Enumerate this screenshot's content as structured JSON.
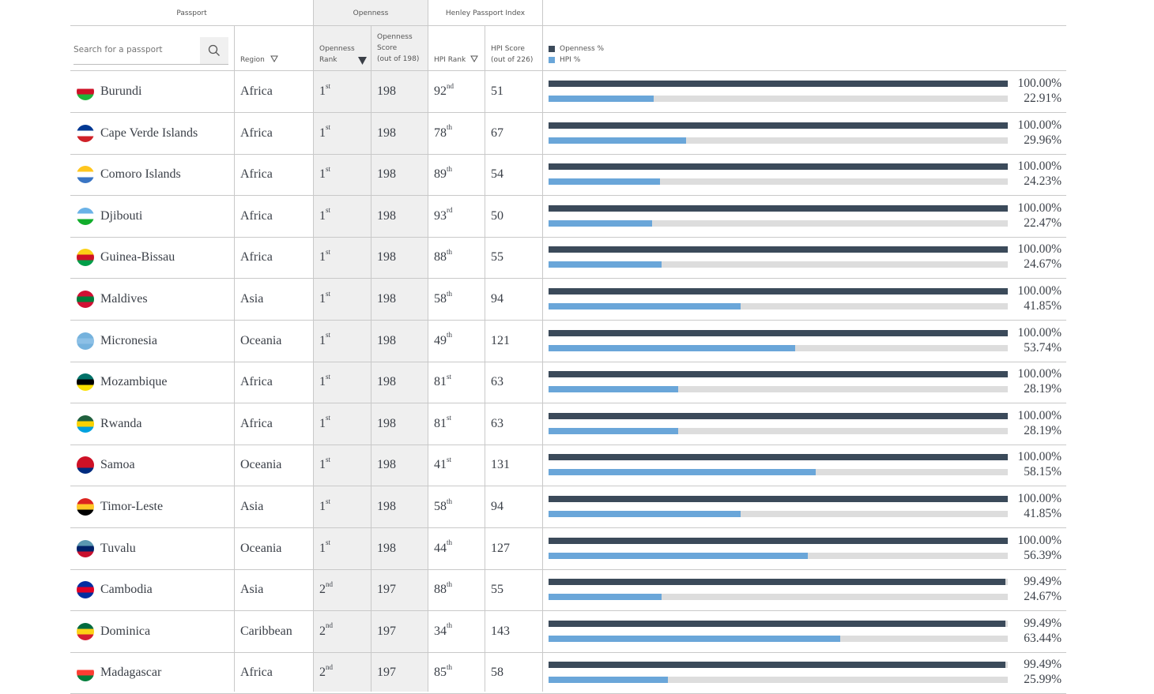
{
  "groups": {
    "passport": "Passport",
    "openness": "Openness",
    "henley": "Henley Passport Index"
  },
  "search": {
    "placeholder": "Search for a passport",
    "icon": "search-icon"
  },
  "headers": {
    "region": "Region",
    "openness_rank_line1": "Openness",
    "openness_rank_line2": "Rank",
    "openness_score_line1": "Openness",
    "openness_score_line2": "Score",
    "openness_score_line3": "(out of 198)",
    "hpi_rank": "HPI Rank",
    "hpi_score_line1": "HPI Score",
    "hpi_score_line2": "(out of 226)"
  },
  "legend": [
    {
      "label": "Openness %",
      "color": "#3b4a5a"
    },
    {
      "label": "HPI %",
      "color": "#6aa6d9"
    }
  ],
  "colors": {
    "openness_bar": "#3b4a5a",
    "hpi_bar": "#6aa6d9",
    "track": "#dddddd"
  },
  "rows": [
    {
      "country": "Burundi",
      "region": "Africa",
      "o_rank": "1",
      "o_suf": "st",
      "o_score": "198",
      "h_rank": "92",
      "h_suf": "nd",
      "h_score": "51",
      "openness_pct": 100.0,
      "openness_label": "100.00%",
      "hpi_pct": 22.91,
      "hpi_label": "22.91%",
      "flag": [
        "#ffffff",
        "#ce1126",
        "#1eb53a"
      ]
    },
    {
      "country": "Cape Verde Islands",
      "region": "Africa",
      "o_rank": "1",
      "o_suf": "st",
      "o_score": "198",
      "h_rank": "78",
      "h_suf": "th",
      "h_score": "67",
      "openness_pct": 100.0,
      "openness_label": "100.00%",
      "hpi_pct": 29.96,
      "hpi_label": "29.96%",
      "flag": [
        "#003893",
        "#ffffff",
        "#cf2027"
      ]
    },
    {
      "country": "Comoro Islands",
      "region": "Africa",
      "o_rank": "1",
      "o_suf": "st",
      "o_score": "198",
      "h_rank": "89",
      "h_suf": "th",
      "h_score": "54",
      "openness_pct": 100.0,
      "openness_label": "100.00%",
      "hpi_pct": 24.23,
      "hpi_label": "24.23%",
      "flag": [
        "#ffc61e",
        "#ffffff",
        "#3a75c4"
      ]
    },
    {
      "country": "Djibouti",
      "region": "Africa",
      "o_rank": "1",
      "o_suf": "st",
      "o_score": "198",
      "h_rank": "93",
      "h_suf": "rd",
      "h_score": "50",
      "openness_pct": 100.0,
      "openness_label": "100.00%",
      "hpi_pct": 22.47,
      "hpi_label": "22.47%",
      "flag": [
        "#6ab2e7",
        "#ffffff",
        "#12ad2b"
      ]
    },
    {
      "country": "Guinea-Bissau",
      "region": "Africa",
      "o_rank": "1",
      "o_suf": "st",
      "o_score": "198",
      "h_rank": "88",
      "h_suf": "th",
      "h_score": "55",
      "openness_pct": 100.0,
      "openness_label": "100.00%",
      "hpi_pct": 24.67,
      "hpi_label": "24.67%",
      "flag": [
        "#fcd116",
        "#ce1126",
        "#009e49"
      ]
    },
    {
      "country": "Maldives",
      "region": "Asia",
      "o_rank": "1",
      "o_suf": "st",
      "o_score": "198",
      "h_rank": "58",
      "h_suf": "th",
      "h_score": "94",
      "openness_pct": 100.0,
      "openness_label": "100.00%",
      "hpi_pct": 41.85,
      "hpi_label": "41.85%",
      "flag": [
        "#d21034",
        "#007e3a",
        "#d21034"
      ]
    },
    {
      "country": "Micronesia",
      "region": "Oceania",
      "o_rank": "1",
      "o_suf": "st",
      "o_score": "198",
      "h_rank": "49",
      "h_suf": "th",
      "h_score": "121",
      "openness_pct": 100.0,
      "openness_label": "100.00%",
      "hpi_pct": 53.74,
      "hpi_label": "53.74%",
      "flag": [
        "#75b2dd",
        "#8cc0e6",
        "#75b2dd"
      ]
    },
    {
      "country": "Mozambique",
      "region": "Africa",
      "o_rank": "1",
      "o_suf": "st",
      "o_score": "198",
      "h_rank": "81",
      "h_suf": "st",
      "h_score": "63",
      "openness_pct": 100.0,
      "openness_label": "100.00%",
      "hpi_pct": 28.19,
      "hpi_label": "28.19%",
      "flag": [
        "#007168",
        "#000000",
        "#fce100"
      ]
    },
    {
      "country": "Rwanda",
      "region": "Africa",
      "o_rank": "1",
      "o_suf": "st",
      "o_score": "198",
      "h_rank": "81",
      "h_suf": "st",
      "h_score": "63",
      "openness_pct": 100.0,
      "openness_label": "100.00%",
      "hpi_pct": 28.19,
      "hpi_label": "28.19%",
      "flag": [
        "#20603d",
        "#fad201",
        "#00a1de"
      ]
    },
    {
      "country": "Samoa",
      "region": "Oceania",
      "o_rank": "1",
      "o_suf": "st",
      "o_score": "198",
      "h_rank": "41",
      "h_suf": "st",
      "h_score": "131",
      "openness_pct": 100.0,
      "openness_label": "100.00%",
      "hpi_pct": 58.15,
      "hpi_label": "58.15%",
      "flag": [
        "#ce1126",
        "#ce1126",
        "#002b7f"
      ]
    },
    {
      "country": "Timor-Leste",
      "region": "Asia",
      "o_rank": "1",
      "o_suf": "st",
      "o_score": "198",
      "h_rank": "58",
      "h_suf": "th",
      "h_score": "94",
      "openness_pct": 100.0,
      "openness_label": "100.00%",
      "hpi_pct": 41.85,
      "hpi_label": "41.85%",
      "flag": [
        "#dc241f",
        "#ffc726",
        "#000000"
      ]
    },
    {
      "country": "Tuvalu",
      "region": "Oceania",
      "o_rank": "1",
      "o_suf": "st",
      "o_score": "198",
      "h_rank": "44",
      "h_suf": "th",
      "h_score": "127",
      "openness_pct": 100.0,
      "openness_label": "100.00%",
      "hpi_pct": 56.39,
      "hpi_label": "56.39%",
      "flag": [
        "#5b97b1",
        "#012169",
        "#c8102e"
      ]
    },
    {
      "country": "Cambodia",
      "region": "Asia",
      "o_rank": "2",
      "o_suf": "nd",
      "o_score": "197",
      "h_rank": "88",
      "h_suf": "th",
      "h_score": "55",
      "openness_pct": 99.49,
      "openness_label": "99.49%",
      "hpi_pct": 24.67,
      "hpi_label": "24.67%",
      "flag": [
        "#032ea1",
        "#e00025",
        "#032ea1"
      ]
    },
    {
      "country": "Dominica",
      "region": "Caribbean",
      "o_rank": "2",
      "o_suf": "nd",
      "o_score": "197",
      "h_rank": "34",
      "h_suf": "th",
      "h_score": "143",
      "openness_pct": 99.49,
      "openness_label": "99.49%",
      "hpi_pct": 63.44,
      "hpi_label": "63.44%",
      "flag": [
        "#006b3f",
        "#fcd116",
        "#d41c30"
      ]
    },
    {
      "country": "Madagascar",
      "region": "Africa",
      "o_rank": "2",
      "o_suf": "nd",
      "o_score": "197",
      "h_rank": "85",
      "h_suf": "th",
      "h_score": "58",
      "openness_pct": 99.49,
      "openness_label": "99.49%",
      "hpi_pct": 25.99,
      "hpi_label": "25.99%",
      "flag": [
        "#ffffff",
        "#fc3d32",
        "#007e3a"
      ]
    }
  ]
}
